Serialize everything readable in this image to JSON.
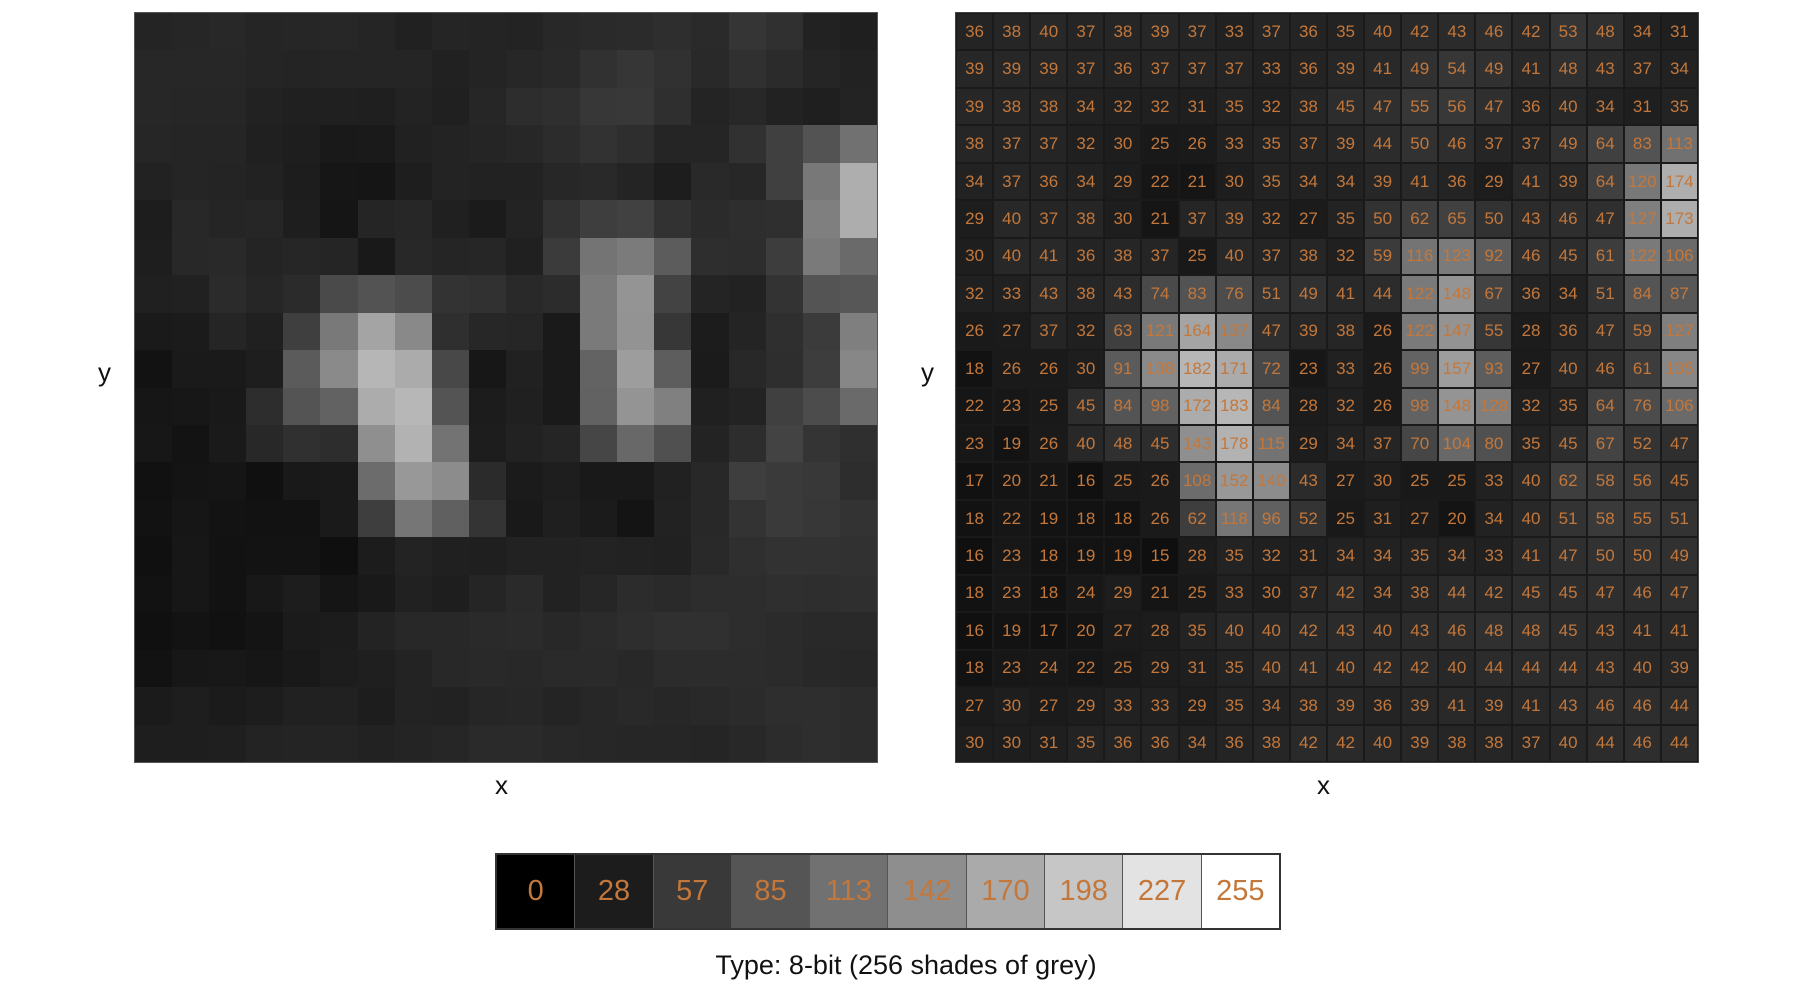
{
  "axes": {
    "left_x": "x",
    "left_y": "y",
    "right_x": "x",
    "right_y": "y"
  },
  "pixel_grid": [
    [
      36,
      38,
      40,
      37,
      38,
      39,
      37,
      33,
      37,
      36,
      35,
      40,
      42,
      43,
      46,
      42,
      53,
      48,
      34,
      31
    ],
    [
      39,
      39,
      39,
      37,
      36,
      37,
      37,
      37,
      33,
      36,
      39,
      41,
      49,
      54,
      49,
      41,
      48,
      43,
      37,
      34
    ],
    [
      39,
      38,
      38,
      34,
      32,
      32,
      31,
      35,
      32,
      38,
      45,
      47,
      55,
      56,
      47,
      36,
      40,
      34,
      31,
      35
    ],
    [
      38,
      37,
      37,
      32,
      30,
      25,
      26,
      33,
      35,
      37,
      39,
      44,
      50,
      46,
      37,
      37,
      49,
      64,
      83,
      113
    ],
    [
      34,
      37,
      36,
      34,
      29,
      22,
      21,
      30,
      35,
      34,
      34,
      39,
      41,
      36,
      29,
      41,
      39,
      64,
      120,
      174
    ],
    [
      29,
      40,
      37,
      38,
      30,
      21,
      37,
      39,
      32,
      27,
      35,
      50,
      62,
      65,
      50,
      43,
      46,
      47,
      127,
      173
    ],
    [
      30,
      40,
      41,
      36,
      38,
      37,
      25,
      40,
      37,
      38,
      32,
      59,
      116,
      123,
      92,
      46,
      45,
      61,
      122,
      106
    ],
    [
      32,
      33,
      43,
      38,
      43,
      74,
      83,
      76,
      51,
      49,
      41,
      44,
      122,
      148,
      67,
      36,
      34,
      51,
      84,
      87
    ],
    [
      26,
      27,
      37,
      32,
      63,
      121,
      164,
      137,
      47,
      39,
      38,
      26,
      122,
      147,
      55,
      28,
      36,
      47,
      59,
      127
    ],
    [
      18,
      26,
      26,
      30,
      91,
      138,
      182,
      171,
      72,
      23,
      33,
      26,
      99,
      157,
      93,
      27,
      40,
      46,
      61,
      135
    ],
    [
      22,
      23,
      25,
      45,
      84,
      98,
      172,
      183,
      84,
      28,
      32,
      26,
      98,
      148,
      128,
      32,
      35,
      64,
      76,
      106
    ],
    [
      23,
      19,
      26,
      40,
      48,
      45,
      143,
      178,
      115,
      29,
      34,
      37,
      70,
      104,
      80,
      35,
      45,
      67,
      52,
      47
    ],
    [
      17,
      20,
      21,
      16,
      25,
      26,
      108,
      152,
      140,
      43,
      27,
      30,
      25,
      25,
      33,
      40,
      62,
      58,
      56,
      45
    ],
    [
      18,
      22,
      19,
      18,
      18,
      26,
      62,
      118,
      96,
      52,
      25,
      31,
      27,
      20,
      34,
      40,
      51,
      58,
      55,
      51
    ],
    [
      16,
      23,
      18,
      19,
      19,
      15,
      28,
      35,
      32,
      31,
      34,
      34,
      35,
      34,
      33,
      41,
      47,
      50,
      50,
      49
    ],
    [
      18,
      23,
      18,
      24,
      29,
      21,
      25,
      33,
      30,
      37,
      42,
      34,
      38,
      44,
      42,
      45,
      45,
      47,
      46,
      47
    ],
    [
      16,
      19,
      17,
      20,
      27,
      28,
      35,
      40,
      40,
      42,
      43,
      40,
      43,
      46,
      48,
      48,
      45,
      43,
      41,
      41
    ],
    [
      18,
      23,
      24,
      22,
      25,
      29,
      31,
      35,
      40,
      41,
      40,
      42,
      42,
      40,
      44,
      44,
      44,
      43,
      40,
      39
    ],
    [
      27,
      30,
      27,
      29,
      33,
      33,
      29,
      35,
      34,
      38,
      39,
      36,
      39,
      41,
      39,
      41,
      43,
      46,
      46,
      44
    ],
    [
      30,
      30,
      31,
      35,
      36,
      36,
      34,
      36,
      38,
      42,
      42,
      40,
      39,
      38,
      38,
      37,
      40,
      44,
      46,
      44
    ]
  ],
  "scale": [
    "0",
    "28",
    "57",
    "85",
    "113",
    "142",
    "170",
    "198",
    "227",
    "255"
  ],
  "caption": "Type: 8-bit (256 shades of grey)",
  "colors": {
    "value_text": "#c4773a",
    "background": "#ffffff"
  }
}
